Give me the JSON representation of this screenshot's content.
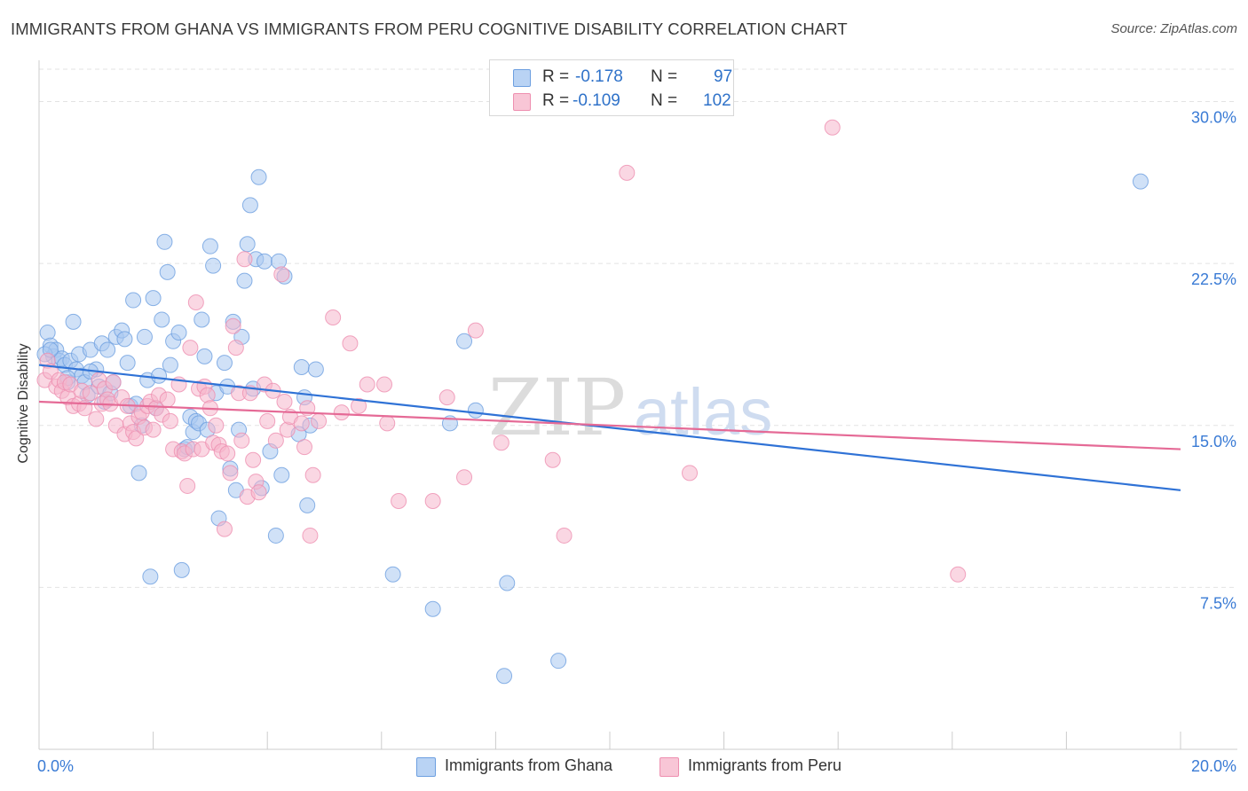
{
  "title": "IMMIGRANTS FROM GHANA VS IMMIGRANTS FROM PERU COGNITIVE DISABILITY CORRELATION CHART",
  "source": "Source: ZipAtlas.com",
  "watermark": {
    "zip": "ZIP",
    "atlas": "atlas"
  },
  "legend": {
    "ghana": {
      "r_label": "R =",
      "r_value": "-0.178",
      "n_label": "N =",
      "n_value": "97"
    },
    "peru": {
      "r_label": "R =",
      "r_value": "-0.109",
      "n_label": "N =",
      "n_value": "102"
    }
  },
  "colors": {
    "ghana_fill": "#a9c8f0",
    "ghana_stroke": "#6d9fe0",
    "ghana_line": "#2f72d6",
    "peru_fill": "#f6b7cc",
    "peru_stroke": "#ee8fb0",
    "peru_line": "#e56a96",
    "axis_text": "#3a7bd5",
    "grid": "#e3e3e3"
  },
  "chart_data": {
    "type": "scatter",
    "title": "IMMIGRANTS FROM GHANA VS IMMIGRANTS FROM PERU COGNITIVE DISABILITY CORRELATION CHART",
    "xlabel": "",
    "ylabel": "Cognitive Disability",
    "xlim": [
      0,
      20
    ],
    "ylim": [
      0,
      31.5
    ],
    "x_ticks": [
      "0.0%",
      "20.0%"
    ],
    "y_ticks": [
      {
        "value": 7.5,
        "label": "7.5%"
      },
      {
        "value": 15.0,
        "label": "15.0%"
      },
      {
        "value": 22.5,
        "label": "22.5%"
      },
      {
        "value": 30.0,
        "label": "30.0%"
      }
    ],
    "grid": "horizontal dashed",
    "legend_placement": "top-center",
    "series": [
      {
        "name": "Immigrants from Ghana",
        "color": "#a9c8f0",
        "trend": {
          "x": [
            0,
            20
          ],
          "y": [
            17.8,
            12.0
          ]
        },
        "points": [
          [
            0.15,
            19.3
          ],
          [
            0.2,
            18.7
          ],
          [
            0.25,
            18.2
          ],
          [
            0.3,
            18.5
          ],
          [
            0.35,
            18.0
          ],
          [
            0.4,
            18.1
          ],
          [
            0.45,
            17.8
          ],
          [
            0.5,
            17.0
          ],
          [
            0.55,
            18.0
          ],
          [
            0.6,
            19.8
          ],
          [
            0.65,
            17.6
          ],
          [
            0.7,
            18.3
          ],
          [
            0.75,
            17.3
          ],
          [
            0.8,
            17.0
          ],
          [
            0.85,
            16.4
          ],
          [
            0.9,
            18.5
          ],
          [
            1.0,
            17.6
          ],
          [
            1.05,
            16.8
          ],
          [
            1.1,
            18.8
          ],
          [
            1.15,
            16.1
          ],
          [
            1.2,
            18.5
          ],
          [
            1.25,
            16.5
          ],
          [
            1.3,
            17.0
          ],
          [
            1.35,
            19.1
          ],
          [
            1.45,
            19.4
          ],
          [
            1.5,
            19.0
          ],
          [
            1.55,
            17.9
          ],
          [
            1.6,
            15.9
          ],
          [
            1.65,
            20.8
          ],
          [
            1.7,
            16.0
          ],
          [
            1.75,
            12.8
          ],
          [
            1.8,
            15.0
          ],
          [
            1.85,
            19.1
          ],
          [
            1.9,
            17.1
          ],
          [
            1.95,
            8.0
          ],
          [
            2.0,
            20.9
          ],
          [
            2.05,
            15.8
          ],
          [
            2.1,
            17.3
          ],
          [
            2.15,
            19.9
          ],
          [
            2.2,
            23.5
          ],
          [
            2.25,
            22.1
          ],
          [
            2.3,
            17.8
          ],
          [
            2.35,
            18.9
          ],
          [
            2.45,
            19.3
          ],
          [
            2.5,
            8.3
          ],
          [
            2.55,
            13.9
          ],
          [
            2.6,
            14.0
          ],
          [
            2.65,
            15.4
          ],
          [
            2.7,
            14.7
          ],
          [
            2.75,
            15.2
          ],
          [
            2.8,
            15.1
          ],
          [
            2.85,
            19.9
          ],
          [
            2.9,
            18.2
          ],
          [
            2.95,
            14.8
          ],
          [
            3.0,
            23.3
          ],
          [
            3.05,
            22.4
          ],
          [
            3.1,
            16.5
          ],
          [
            3.15,
            10.7
          ],
          [
            3.25,
            17.9
          ],
          [
            3.3,
            16.8
          ],
          [
            3.35,
            13.0
          ],
          [
            3.4,
            19.8
          ],
          [
            3.45,
            12.0
          ],
          [
            3.5,
            14.8
          ],
          [
            3.55,
            19.1
          ],
          [
            3.6,
            21.7
          ],
          [
            3.65,
            23.4
          ],
          [
            3.7,
            25.2
          ],
          [
            3.75,
            16.7
          ],
          [
            3.8,
            22.7
          ],
          [
            3.85,
            26.5
          ],
          [
            3.9,
            12.1
          ],
          [
            3.95,
            22.6
          ],
          [
            4.05,
            13.8
          ],
          [
            4.15,
            9.9
          ],
          [
            4.2,
            22.6
          ],
          [
            4.25,
            12.7
          ],
          [
            4.3,
            21.9
          ],
          [
            4.55,
            14.6
          ],
          [
            4.6,
            17.7
          ],
          [
            4.65,
            16.3
          ],
          [
            4.7,
            11.3
          ],
          [
            4.75,
            15.0
          ],
          [
            4.85,
            17.6
          ],
          [
            6.2,
            8.1
          ],
          [
            6.9,
            6.5
          ],
          [
            7.2,
            15.1
          ],
          [
            7.45,
            18.9
          ],
          [
            7.65,
            15.7
          ],
          [
            8.2,
            7.7
          ],
          [
            8.15,
            3.4
          ],
          [
            9.1,
            4.1
          ],
          [
            19.3,
            26.3
          ],
          [
            0.1,
            18.3
          ],
          [
            0.2,
            18.5
          ],
          [
            0.5,
            17.2
          ],
          [
            0.9,
            17.5
          ]
        ]
      },
      {
        "name": "Immigrants from Peru",
        "color": "#f6b7cc",
        "trend": {
          "x": [
            0,
            20
          ],
          "y": [
            16.1,
            13.9
          ]
        },
        "points": [
          [
            0.1,
            17.1
          ],
          [
            0.15,
            18.0
          ],
          [
            0.2,
            17.5
          ],
          [
            0.3,
            16.8
          ],
          [
            0.35,
            17.1
          ],
          [
            0.4,
            16.6
          ],
          [
            0.45,
            17.0
          ],
          [
            0.5,
            16.3
          ],
          [
            0.55,
            16.9
          ],
          [
            0.6,
            15.9
          ],
          [
            0.7,
            16.0
          ],
          [
            0.75,
            16.6
          ],
          [
            0.8,
            15.8
          ],
          [
            0.9,
            16.5
          ],
          [
            1.0,
            15.3
          ],
          [
            1.05,
            17.1
          ],
          [
            1.1,
            16.0
          ],
          [
            1.15,
            16.7
          ],
          [
            1.2,
            16.2
          ],
          [
            1.25,
            16.0
          ],
          [
            1.3,
            17.0
          ],
          [
            1.35,
            15.0
          ],
          [
            1.45,
            16.3
          ],
          [
            1.5,
            14.6
          ],
          [
            1.55,
            15.9
          ],
          [
            1.6,
            15.1
          ],
          [
            1.65,
            14.7
          ],
          [
            1.7,
            14.4
          ],
          [
            1.75,
            15.4
          ],
          [
            1.8,
            15.6
          ],
          [
            1.85,
            14.9
          ],
          [
            1.9,
            15.9
          ],
          [
            1.95,
            16.1
          ],
          [
            2.0,
            14.8
          ],
          [
            2.05,
            15.8
          ],
          [
            2.1,
            16.4
          ],
          [
            2.15,
            15.5
          ],
          [
            2.25,
            16.2
          ],
          [
            2.3,
            15.2
          ],
          [
            2.35,
            13.9
          ],
          [
            2.45,
            16.9
          ],
          [
            2.5,
            13.8
          ],
          [
            2.55,
            13.7
          ],
          [
            2.6,
            12.2
          ],
          [
            2.65,
            18.6
          ],
          [
            2.7,
            13.9
          ],
          [
            2.75,
            20.7
          ],
          [
            2.8,
            16.7
          ],
          [
            2.85,
            13.9
          ],
          [
            2.9,
            16.8
          ],
          [
            2.95,
            16.4
          ],
          [
            3.0,
            15.8
          ],
          [
            3.05,
            14.2
          ],
          [
            3.1,
            15.0
          ],
          [
            3.15,
            14.1
          ],
          [
            3.2,
            13.8
          ],
          [
            3.25,
            10.2
          ],
          [
            3.3,
            13.7
          ],
          [
            3.35,
            12.8
          ],
          [
            3.4,
            19.6
          ],
          [
            3.45,
            18.6
          ],
          [
            3.5,
            16.5
          ],
          [
            3.55,
            14.3
          ],
          [
            3.6,
            22.7
          ],
          [
            3.65,
            11.7
          ],
          [
            3.7,
            16.5
          ],
          [
            3.75,
            13.4
          ],
          [
            3.8,
            12.4
          ],
          [
            3.85,
            11.9
          ],
          [
            3.95,
            16.9
          ],
          [
            4.0,
            15.2
          ],
          [
            4.1,
            16.6
          ],
          [
            4.15,
            14.3
          ],
          [
            4.25,
            22.0
          ],
          [
            4.3,
            16.1
          ],
          [
            4.35,
            14.8
          ],
          [
            4.4,
            15.4
          ],
          [
            4.6,
            15.1
          ],
          [
            4.65,
            14.0
          ],
          [
            4.7,
            15.8
          ],
          [
            4.75,
            9.9
          ],
          [
            4.8,
            12.7
          ],
          [
            4.9,
            15.2
          ],
          [
            5.15,
            20.0
          ],
          [
            5.3,
            15.6
          ],
          [
            5.45,
            18.8
          ],
          [
            5.6,
            15.9
          ],
          [
            5.75,
            16.9
          ],
          [
            6.05,
            16.9
          ],
          [
            6.1,
            15.1
          ],
          [
            6.3,
            11.5
          ],
          [
            6.9,
            11.5
          ],
          [
            7.15,
            16.3
          ],
          [
            7.45,
            12.6
          ],
          [
            7.65,
            19.4
          ],
          [
            8.1,
            14.2
          ],
          [
            9.0,
            13.4
          ],
          [
            9.2,
            9.9
          ],
          [
            10.3,
            26.7
          ],
          [
            11.4,
            12.8
          ],
          [
            16.1,
            8.1
          ],
          [
            13.9,
            28.8
          ]
        ]
      }
    ]
  },
  "bottom_legend": {
    "ghana": "Immigrants from Ghana",
    "peru": "Immigrants from Peru"
  }
}
